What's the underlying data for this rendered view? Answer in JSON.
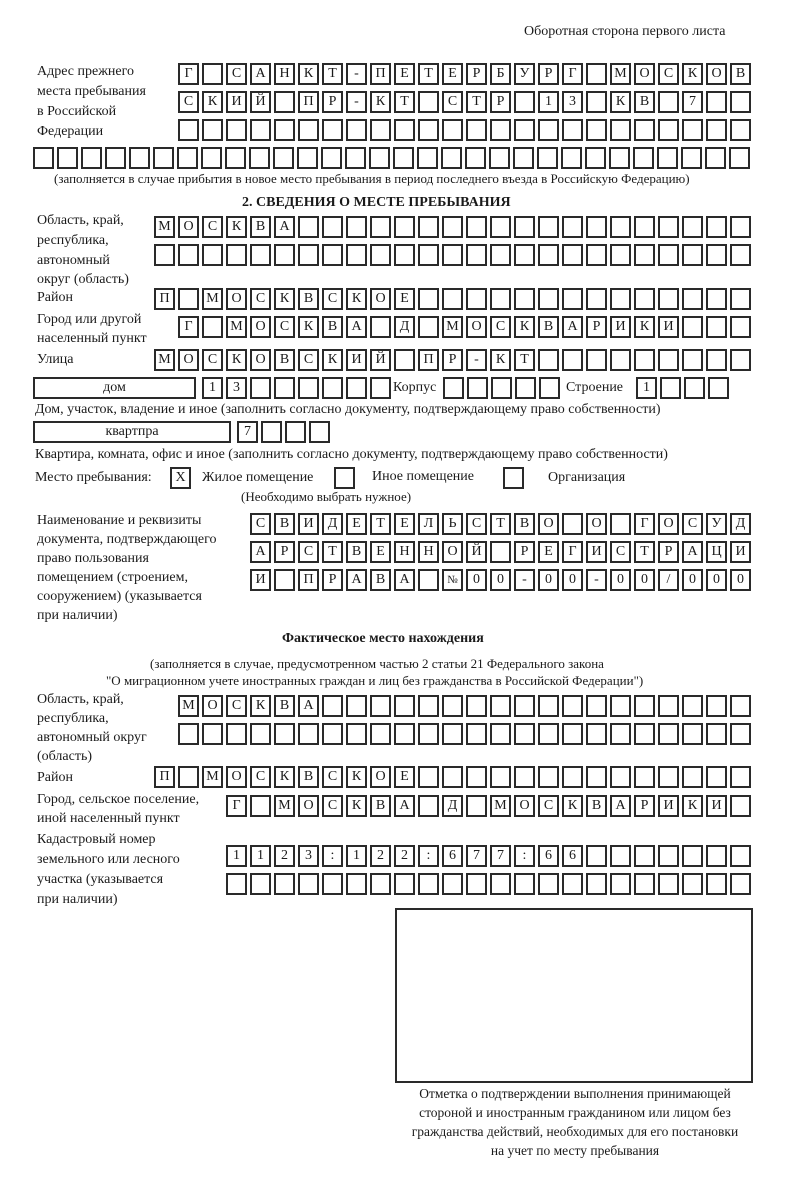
{
  "header": {
    "page_side": "Оборотная сторона первого листа"
  },
  "previous_address": {
    "label": [
      "Адрес прежнего",
      "места пребывания",
      "в Российской",
      "Федерации"
    ],
    "rows": [
      "Г САНКТ-ПЕТЕРБУРГ МОСКОВ",
      "СКИЙ ПР-КТ СТР 13 КВ 7",
      "",
      ""
    ],
    "note": "(заполняется в случае прибытия в новое место пребывания в период последнего въезда в Российскую Федерацию)"
  },
  "section2": {
    "title": "2. СВЕДЕНИЯ О МЕСТЕ ПРЕБЫВАНИЯ",
    "region_label": [
      "Область, край,",
      "республика,",
      "автономный",
      "округ (область)"
    ],
    "region_rows": [
      "МОСКВА",
      ""
    ],
    "district_label": "Район",
    "district": "П МОСКВСКОЕ",
    "city_label": [
      "Город или другой",
      "населенный пункт"
    ],
    "city": "Г МОСКВА Д МОСКВАРИКИ",
    "street_label": "Улица",
    "street": "МОСКОВСКИЙ ПР-КТ",
    "house_type": "дом",
    "house_number": "13",
    "korpus_label": "Корпус",
    "korpus": "",
    "building_label": "Строение",
    "building": "1",
    "house_note": "Дом, участок, владение и иное (заполнить согласно документу, подтверждающему право собственности)",
    "apartment_type": "квартпра",
    "apartment_number": "7",
    "apartment_note": "Квартира, комната, офис и иное (заполнить согласно документу, подтверждающему право собственности)",
    "stay_place_label": "Место пребывания:",
    "stay_options": [
      {
        "label": "Жилое помещение",
        "mark": "X"
      },
      {
        "label": "Иное помещение",
        "mark": ""
      },
      {
        "label": "Организация",
        "mark": ""
      }
    ],
    "stay_hint": "(Необходимо выбрать нужное)",
    "document_label": [
      "Наименование и реквизиты",
      "документа, подтверждающего",
      "право пользования",
      "помещением (строением,",
      "сооружением) (указывается",
      "при наличии)"
    ],
    "document_rows": [
      "СВИДЕТЕЛЬСТВО О ГОСУД",
      "АРСТВЕННОЙ РЕГИСТРАЦИ",
      "И ПРАВА №00-00-00/000"
    ]
  },
  "actual_location": {
    "title": "Фактическое место нахождения",
    "note": [
      "(заполняется в случае, предусмотренном частью 2 статьи 21 Федерального закона",
      "\"О миграционном учете иностранных граждан и лиц без гражданства в Российской Федерации\")"
    ],
    "region_label": [
      "Область, край,",
      "республика,",
      "автономный округ",
      "(область)"
    ],
    "region_rows": [
      "МОСКВА",
      ""
    ],
    "district_label": "Район",
    "district": "П МОСКВСКОЕ",
    "city_label": [
      "Город, сельское поселение,",
      "иной населенный пункт"
    ],
    "city": "Г МОСКВА Д МОСКВАРИКИ",
    "cadastral_label": [
      "Кадастровый номер",
      "земельного или лесного",
      "участка (указывается",
      "при наличии)"
    ],
    "cadastral_rows": [
      "1123:122:677:66",
      ""
    ]
  },
  "confirmation": {
    "caption": [
      "Отметка о подтверждении выполнения принимающей",
      "стороной и иностранным гражданином или лицом без",
      "гражданства действий, необходимых для его постановки",
      "на учет по месту пребывания"
    ]
  }
}
